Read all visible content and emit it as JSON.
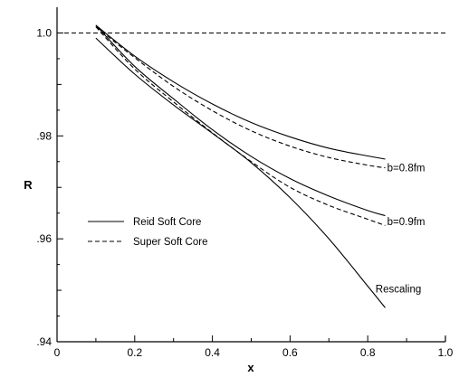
{
  "chart_data": {
    "type": "line",
    "title": "",
    "xlabel": "x",
    "ylabel": "R",
    "xlim": [
      0,
      1.0
    ],
    "ylim": [
      0.94,
      1.005
    ],
    "x_ticks": [
      {
        "value": 0,
        "label": "0"
      },
      {
        "value": 0.2,
        "label": "0.2"
      },
      {
        "value": 0.4,
        "label": "0.4"
      },
      {
        "value": 0.6,
        "label": "0.6"
      },
      {
        "value": 0.8,
        "label": "0.8"
      },
      {
        "value": 1.0,
        "label": "1.0"
      }
    ],
    "y_ticks": [
      {
        "value": 1.0,
        "label": "1.0"
      },
      {
        "value": 0.98,
        "label": ".98"
      },
      {
        "value": 0.96,
        "label": ".96"
      },
      {
        "value": 0.94,
        "label": ".94"
      }
    ],
    "reference_line": {
      "y": 1.0,
      "style": "dashed"
    },
    "legend": {
      "placement": "center-left",
      "entries": [
        {
          "label": "Reid Soft Core",
          "style": "solid"
        },
        {
          "label": "Super Soft Core",
          "style": "dashed"
        }
      ]
    },
    "series": [
      {
        "style": "solid",
        "curve_label": "b=0.8fm",
        "points": [
          [
            0.1,
            1.0015
          ],
          [
            0.2,
            0.9955
          ],
          [
            0.3,
            0.9905
          ],
          [
            0.4,
            0.9862
          ],
          [
            0.5,
            0.9826
          ],
          [
            0.6,
            0.9798
          ],
          [
            0.7,
            0.9776
          ],
          [
            0.8,
            0.9761
          ],
          [
            0.845,
            0.9755
          ]
        ]
      },
      {
        "style": "dashed",
        "curve_label": "b=0.8fm",
        "points": [
          [
            0.1,
            1.0012
          ],
          [
            0.2,
            0.9952
          ],
          [
            0.3,
            0.9896
          ],
          [
            0.4,
            0.9849
          ],
          [
            0.5,
            0.981
          ],
          [
            0.6,
            0.978
          ],
          [
            0.7,
            0.9758
          ],
          [
            0.8,
            0.9743
          ],
          [
            0.845,
            0.9738
          ]
        ]
      },
      {
        "style": "solid",
        "curve_label": "b=0.9fm",
        "points": [
          [
            0.1,
            1.0015
          ],
          [
            0.2,
            0.9935
          ],
          [
            0.3,
            0.9872
          ],
          [
            0.4,
            0.9812
          ],
          [
            0.5,
            0.976
          ],
          [
            0.6,
            0.9717
          ],
          [
            0.7,
            0.9683
          ],
          [
            0.8,
            0.9655
          ],
          [
            0.845,
            0.9645
          ]
        ]
      },
      {
        "style": "dashed",
        "curve_label": "b=0.9fm",
        "points": [
          [
            0.1,
            1.0012
          ],
          [
            0.2,
            0.993
          ],
          [
            0.3,
            0.9866
          ],
          [
            0.4,
            0.9806
          ],
          [
            0.5,
            0.975
          ],
          [
            0.6,
            0.97
          ],
          [
            0.7,
            0.9665
          ],
          [
            0.8,
            0.9638
          ],
          [
            0.845,
            0.9626
          ]
        ]
      },
      {
        "style": "solid",
        "curve_label": "Rescaling",
        "points": [
          [
            0.1,
            0.999
          ],
          [
            0.2,
            0.992
          ],
          [
            0.3,
            0.986
          ],
          [
            0.4,
            0.9805
          ],
          [
            0.5,
            0.9748
          ],
          [
            0.6,
            0.968
          ],
          [
            0.7,
            0.96
          ],
          [
            0.8,
            0.9508
          ],
          [
            0.845,
            0.9466
          ]
        ]
      }
    ],
    "annotations": [
      {
        "text": "b=0.8fm",
        "x": 0.85,
        "y": 0.9738
      },
      {
        "text": "b=0.9fm",
        "x": 0.85,
        "y": 0.9634
      },
      {
        "text": "Rescaling",
        "x": 0.82,
        "y": 0.9503
      }
    ]
  }
}
